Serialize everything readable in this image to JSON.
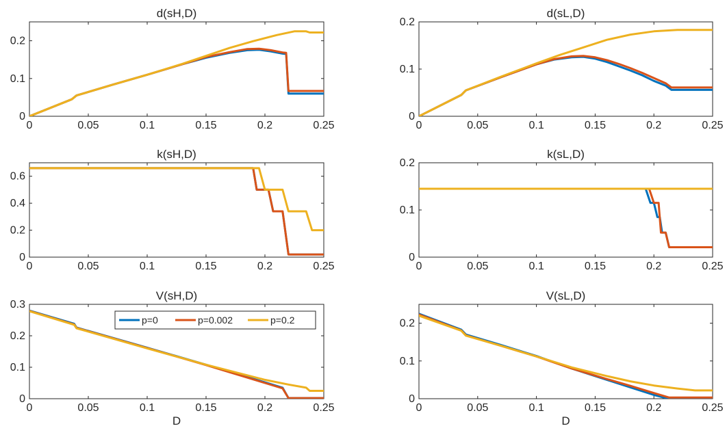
{
  "chart_data": [
    {
      "type": "line",
      "title": "d(sH,D)",
      "xlabel": "",
      "xlim": [
        0,
        0.25
      ],
      "ylim": [
        0,
        0.25
      ],
      "xticks": [
        "0",
        "0.05",
        "0.1",
        "0.15",
        "0.2",
        "0.25"
      ],
      "yticks": [
        "0",
        "0.1",
        "0.2"
      ],
      "grid": false,
      "series": [
        {
          "name": "p=0",
          "color": "#0072BD",
          "points": [
            [
              0,
              0
            ],
            [
              0.036,
              0.045
            ],
            [
              0.04,
              0.055
            ],
            [
              0.07,
              0.083
            ],
            [
              0.1,
              0.11
            ],
            [
              0.13,
              0.138
            ],
            [
              0.15,
              0.155
            ],
            [
              0.17,
              0.168
            ],
            [
              0.185,
              0.175
            ],
            [
              0.195,
              0.176
            ],
            [
              0.205,
              0.172
            ],
            [
              0.215,
              0.166
            ],
            [
              0.218,
              0.165
            ],
            [
              0.22,
              0.06
            ],
            [
              0.25,
              0.06
            ]
          ]
        },
        {
          "name": "p=0.002",
          "color": "#D95319",
          "points": [
            [
              0,
              0
            ],
            [
              0.036,
              0.045
            ],
            [
              0.04,
              0.055
            ],
            [
              0.07,
              0.083
            ],
            [
              0.1,
              0.11
            ],
            [
              0.13,
              0.138
            ],
            [
              0.15,
              0.157
            ],
            [
              0.17,
              0.17
            ],
            [
              0.185,
              0.178
            ],
            [
              0.195,
              0.179
            ],
            [
              0.205,
              0.175
            ],
            [
              0.215,
              0.169
            ],
            [
              0.218,
              0.168
            ],
            [
              0.22,
              0.067
            ],
            [
              0.25,
              0.067
            ]
          ]
        },
        {
          "name": "p=0.2",
          "color": "#EDB120",
          "points": [
            [
              0,
              0
            ],
            [
              0.036,
              0.045
            ],
            [
              0.04,
              0.055
            ],
            [
              0.07,
              0.083
            ],
            [
              0.1,
              0.11
            ],
            [
              0.13,
              0.139
            ],
            [
              0.15,
              0.16
            ],
            [
              0.17,
              0.181
            ],
            [
              0.19,
              0.199
            ],
            [
              0.21,
              0.215
            ],
            [
              0.225,
              0.225
            ],
            [
              0.235,
              0.225
            ],
            [
              0.238,
              0.222
            ],
            [
              0.25,
              0.222
            ]
          ]
        }
      ]
    },
    {
      "type": "line",
      "title": "d(sL,D)",
      "xlabel": "",
      "xlim": [
        0,
        0.25
      ],
      "ylim": [
        0,
        0.2
      ],
      "xticks": [
        "0",
        "0.05",
        "0.1",
        "0.15",
        "0.2",
        "0.25"
      ],
      "yticks": [
        "0",
        "0.1",
        "0.2"
      ],
      "grid": false,
      "series": [
        {
          "name": "p=0",
          "color": "#0072BD",
          "points": [
            [
              0,
              0
            ],
            [
              0.036,
              0.045
            ],
            [
              0.04,
              0.055
            ],
            [
              0.07,
              0.083
            ],
            [
              0.1,
              0.11
            ],
            [
              0.115,
              0.12
            ],
            [
              0.13,
              0.125
            ],
            [
              0.14,
              0.126
            ],
            [
              0.15,
              0.122
            ],
            [
              0.16,
              0.115
            ],
            [
              0.17,
              0.106
            ],
            [
              0.18,
              0.097
            ],
            [
              0.19,
              0.087
            ],
            [
              0.2,
              0.075
            ],
            [
              0.21,
              0.065
            ],
            [
              0.215,
              0.056
            ],
            [
              0.25,
              0.056
            ]
          ]
        },
        {
          "name": "p=0.002",
          "color": "#D95319",
          "points": [
            [
              0,
              0
            ],
            [
              0.036,
              0.045
            ],
            [
              0.04,
              0.055
            ],
            [
              0.07,
              0.083
            ],
            [
              0.1,
              0.11
            ],
            [
              0.115,
              0.121
            ],
            [
              0.13,
              0.127
            ],
            [
              0.14,
              0.128
            ],
            [
              0.15,
              0.125
            ],
            [
              0.16,
              0.119
            ],
            [
              0.17,
              0.111
            ],
            [
              0.18,
              0.102
            ],
            [
              0.19,
              0.092
            ],
            [
              0.2,
              0.081
            ],
            [
              0.21,
              0.07
            ],
            [
              0.215,
              0.061
            ],
            [
              0.25,
              0.061
            ]
          ]
        },
        {
          "name": "p=0.2",
          "color": "#EDB120",
          "points": [
            [
              0,
              0
            ],
            [
              0.036,
              0.045
            ],
            [
              0.04,
              0.055
            ],
            [
              0.07,
              0.084
            ],
            [
              0.1,
              0.112
            ],
            [
              0.12,
              0.13
            ],
            [
              0.14,
              0.146
            ],
            [
              0.16,
              0.162
            ],
            [
              0.18,
              0.173
            ],
            [
              0.2,
              0.18
            ],
            [
              0.22,
              0.183
            ],
            [
              0.25,
              0.183
            ]
          ]
        }
      ]
    },
    {
      "type": "line",
      "title": "k(sH,D)",
      "xlabel": "",
      "xlim": [
        0,
        0.25
      ],
      "ylim": [
        0,
        0.7
      ],
      "xticks": [
        "0",
        "0.05",
        "0.1",
        "0.15",
        "0.2",
        "0.25"
      ],
      "yticks": [
        "0",
        "0.2",
        "0.4",
        "0.6"
      ],
      "grid": false,
      "series": [
        {
          "name": "p=0",
          "color": "#0072BD",
          "points": [
            [
              0,
              0.66
            ],
            [
              0.19,
              0.66
            ],
            [
              0.193,
              0.5
            ],
            [
              0.2,
              0.5
            ],
            [
              0.203,
              0.5
            ],
            [
              0.207,
              0.34
            ],
            [
              0.215,
              0.34
            ],
            [
              0.22,
              0.02
            ],
            [
              0.25,
              0.02
            ]
          ]
        },
        {
          "name": "p=0.002",
          "color": "#D95319",
          "points": [
            [
              0,
              0.66
            ],
            [
              0.19,
              0.66
            ],
            [
              0.193,
              0.5
            ],
            [
              0.2,
              0.5
            ],
            [
              0.203,
              0.5
            ],
            [
              0.207,
              0.34
            ],
            [
              0.215,
              0.34
            ],
            [
              0.22,
              0.02
            ],
            [
              0.25,
              0.02
            ]
          ]
        },
        {
          "name": "p=0.2",
          "color": "#EDB120",
          "points": [
            [
              0,
              0.66
            ],
            [
              0.195,
              0.66
            ],
            [
              0.2,
              0.5
            ],
            [
              0.215,
              0.5
            ],
            [
              0.22,
              0.34
            ],
            [
              0.235,
              0.34
            ],
            [
              0.24,
              0.2
            ],
            [
              0.25,
              0.2
            ]
          ]
        }
      ]
    },
    {
      "type": "line",
      "title": "k(sL,D)",
      "xlabel": "",
      "xlim": [
        0,
        0.25
      ],
      "ylim": [
        0,
        0.2
      ],
      "xticks": [
        "0",
        "0.05",
        "0.1",
        "0.15",
        "0.2",
        "0.25"
      ],
      "yticks": [
        "0",
        "0.1",
        "0.2"
      ],
      "grid": false,
      "series": [
        {
          "name": "p=0",
          "color": "#0072BD",
          "points": [
            [
              0,
              0.145
            ],
            [
              0.193,
              0.145
            ],
            [
              0.197,
              0.115
            ],
            [
              0.2,
              0.115
            ],
            [
              0.203,
              0.085
            ],
            [
              0.205,
              0.085
            ],
            [
              0.207,
              0.052
            ],
            [
              0.21,
              0.052
            ],
            [
              0.213,
              0.021
            ],
            [
              0.25,
              0.021
            ]
          ]
        },
        {
          "name": "p=0.002",
          "color": "#D95319",
          "points": [
            [
              0,
              0.145
            ],
            [
              0.196,
              0.145
            ],
            [
              0.2,
              0.115
            ],
            [
              0.204,
              0.115
            ],
            [
              0.206,
              0.052
            ],
            [
              0.21,
              0.052
            ],
            [
              0.213,
              0.021
            ],
            [
              0.25,
              0.021
            ]
          ]
        },
        {
          "name": "p=0.2",
          "color": "#EDB120",
          "points": [
            [
              0,
              0.145
            ],
            [
              0.25,
              0.145
            ]
          ]
        }
      ]
    },
    {
      "type": "line",
      "title": "V(sH,D)",
      "xlabel": "D",
      "xlim": [
        0,
        0.25
      ],
      "ylim": [
        0,
        0.3
      ],
      "xticks": [
        "0",
        "0.05",
        "0.1",
        "0.15",
        "0.2",
        "0.25"
      ],
      "yticks": [
        "0",
        "0.1",
        "0.2",
        "0.3"
      ],
      "grid": false,
      "legend": {
        "placement": "top-right",
        "orientation": "horizontal",
        "entries": [
          "p=0",
          "p=0.002",
          "p=0.2"
        ]
      },
      "series": [
        {
          "name": "p=0",
          "color": "#0072BD",
          "points": [
            [
              0,
              0.28
            ],
            [
              0.038,
              0.238
            ],
            [
              0.04,
              0.226
            ],
            [
              0.1,
              0.162
            ],
            [
              0.15,
              0.108
            ],
            [
              0.2,
              0.052
            ],
            [
              0.215,
              0.035
            ],
            [
              0.22,
              0.002
            ],
            [
              0.25,
              0.002
            ]
          ]
        },
        {
          "name": "p=0.002",
          "color": "#D95319",
          "points": [
            [
              0,
              0.279
            ],
            [
              0.038,
              0.236
            ],
            [
              0.04,
              0.225
            ],
            [
              0.1,
              0.161
            ],
            [
              0.15,
              0.107
            ],
            [
              0.2,
              0.05
            ],
            [
              0.215,
              0.033
            ],
            [
              0.22,
              0.002
            ],
            [
              0.25,
              0.002
            ]
          ]
        },
        {
          "name": "p=0.2",
          "color": "#EDB120",
          "points": [
            [
              0,
              0.278
            ],
            [
              0.038,
              0.235
            ],
            [
              0.04,
              0.224
            ],
            [
              0.1,
              0.16
            ],
            [
              0.15,
              0.108
            ],
            [
              0.2,
              0.06
            ],
            [
              0.22,
              0.045
            ],
            [
              0.235,
              0.035
            ],
            [
              0.238,
              0.025
            ],
            [
              0.25,
              0.025
            ]
          ]
        }
      ]
    },
    {
      "type": "line",
      "title": "V(sL,D)",
      "xlabel": "D",
      "xlim": [
        0,
        0.25
      ],
      "ylim": [
        0,
        0.25
      ],
      "xticks": [
        "0",
        "0.05",
        "0.1",
        "0.15",
        "0.2",
        "0.25"
      ],
      "yticks": [
        "0",
        "0.1",
        "0.2"
      ],
      "grid": false,
      "series": [
        {
          "name": "p=0",
          "color": "#0072BD",
          "points": [
            [
              0,
              0.225
            ],
            [
              0.036,
              0.183
            ],
            [
              0.04,
              0.17
            ],
            [
              0.07,
              0.142
            ],
            [
              0.1,
              0.113
            ],
            [
              0.13,
              0.08
            ],
            [
              0.16,
              0.05
            ],
            [
              0.18,
              0.03
            ],
            [
              0.2,
              0.01
            ],
            [
              0.21,
              0.002
            ],
            [
              0.25,
              0.002
            ]
          ]
        },
        {
          "name": "p=0.002",
          "color": "#D95319",
          "points": [
            [
              0,
              0.223
            ],
            [
              0.036,
              0.181
            ],
            [
              0.04,
              0.168
            ],
            [
              0.07,
              0.14
            ],
            [
              0.1,
              0.112
            ],
            [
              0.13,
              0.08
            ],
            [
              0.16,
              0.052
            ],
            [
              0.18,
              0.034
            ],
            [
              0.2,
              0.015
            ],
            [
              0.213,
              0.003
            ],
            [
              0.25,
              0.003
            ]
          ]
        },
        {
          "name": "p=0.2",
          "color": "#EDB120",
          "points": [
            [
              0,
              0.22
            ],
            [
              0.036,
              0.18
            ],
            [
              0.04,
              0.167
            ],
            [
              0.07,
              0.14
            ],
            [
              0.1,
              0.112
            ],
            [
              0.13,
              0.083
            ],
            [
              0.16,
              0.06
            ],
            [
              0.18,
              0.046
            ],
            [
              0.2,
              0.035
            ],
            [
              0.22,
              0.027
            ],
            [
              0.235,
              0.022
            ],
            [
              0.25,
              0.022
            ]
          ]
        }
      ]
    }
  ]
}
